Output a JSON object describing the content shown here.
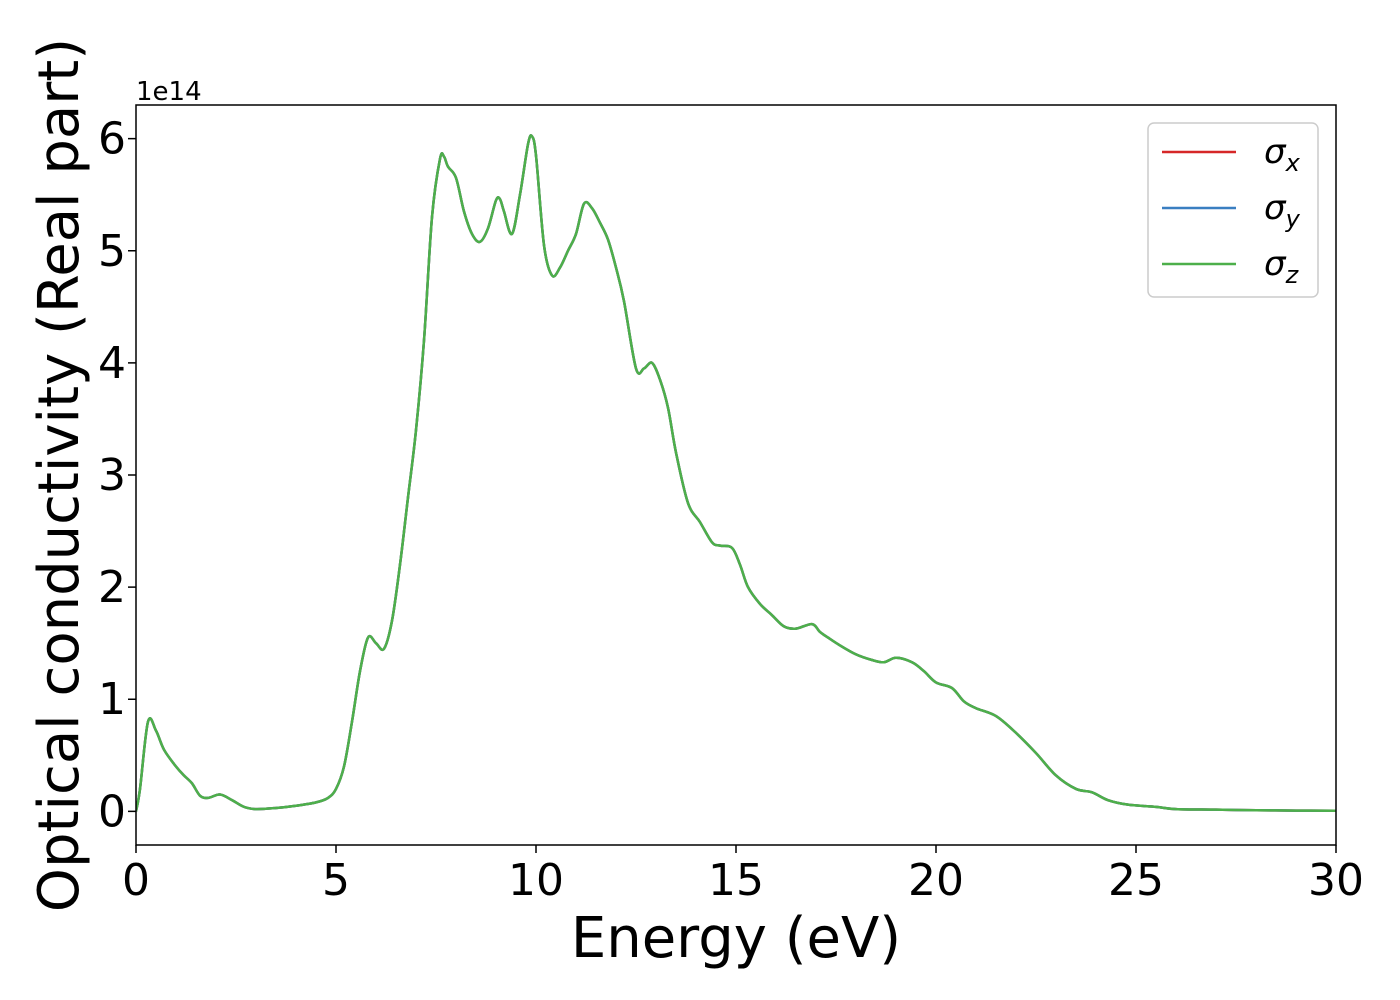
{
  "chart_data": {
    "type": "line",
    "xlabel": "Energy (eV)",
    "ylabel": "Optical conductivity (Real part)",
    "y_offset_label": "1e14",
    "xlim": [
      0,
      30
    ],
    "ylim": [
      -0.3,
      6.3
    ],
    "x_ticks": [
      0,
      5,
      10,
      15,
      20,
      25,
      30
    ],
    "y_ticks": [
      0,
      1,
      2,
      3,
      4,
      5,
      6
    ],
    "y_unit_scale": 100000000000000.0,
    "grid": false,
    "legend_position": "top-right",
    "series": [
      {
        "name": "σx",
        "symbol": "σ",
        "subscript": "x",
        "color": "#d62728"
      },
      {
        "name": "σy",
        "symbol": "σ",
        "subscript": "y",
        "color": "#3a7fc1"
      },
      {
        "name": "σz",
        "symbol": "σ",
        "subscript": "z",
        "color": "#4daf4a"
      }
    ],
    "x": [
      0,
      0.1,
      0.3,
      0.5,
      0.7,
      1.0,
      1.2,
      1.4,
      1.6,
      1.8,
      2.1,
      2.4,
      2.7,
      3.0,
      3.5,
      4.0,
      4.5,
      4.8,
      5.0,
      5.2,
      5.4,
      5.6,
      5.8,
      6.0,
      6.2,
      6.4,
      6.6,
      6.8,
      7.0,
      7.2,
      7.4,
      7.6,
      7.7,
      7.8,
      8.0,
      8.2,
      8.4,
      8.6,
      8.8,
      9.0,
      9.1,
      9.2,
      9.4,
      9.6,
      9.8,
      9.9,
      10.0,
      10.2,
      10.4,
      10.6,
      10.8,
      11.0,
      11.2,
      11.4,
      11.6,
      11.8,
      12.0,
      12.2,
      12.5,
      12.7,
      12.9,
      13.1,
      13.3,
      13.5,
      13.8,
      14.1,
      14.4,
      14.6,
      14.9,
      15.1,
      15.3,
      15.6,
      15.9,
      16.2,
      16.5,
      16.9,
      17.1,
      17.3,
      17.6,
      18.0,
      18.4,
      18.7,
      19.0,
      19.4,
      19.7,
      20.0,
      20.4,
      20.7,
      21.0,
      21.5,
      22.0,
      22.5,
      23.0,
      23.5,
      23.9,
      24.3,
      24.8,
      25.5,
      26.0,
      27.0,
      28.0,
      29.0,
      30.0
    ],
    "y": [
      0.0,
      0.2,
      0.8,
      0.72,
      0.55,
      0.4,
      0.32,
      0.25,
      0.14,
      0.12,
      0.15,
      0.1,
      0.04,
      0.02,
      0.03,
      0.05,
      0.08,
      0.12,
      0.2,
      0.4,
      0.8,
      1.25,
      1.55,
      1.5,
      1.45,
      1.7,
      2.2,
      2.8,
      3.4,
      4.2,
      5.3,
      5.82,
      5.84,
      5.75,
      5.65,
      5.35,
      5.15,
      5.08,
      5.2,
      5.45,
      5.46,
      5.35,
      5.15,
      5.5,
      5.95,
      6.02,
      5.85,
      5.05,
      4.78,
      4.85,
      5.0,
      5.15,
      5.42,
      5.38,
      5.25,
      5.1,
      4.85,
      4.55,
      3.95,
      3.95,
      4.0,
      3.85,
      3.6,
      3.2,
      2.75,
      2.58,
      2.4,
      2.37,
      2.35,
      2.2,
      2.0,
      1.85,
      1.75,
      1.65,
      1.63,
      1.67,
      1.6,
      1.55,
      1.48,
      1.4,
      1.35,
      1.33,
      1.37,
      1.33,
      1.25,
      1.15,
      1.1,
      0.98,
      0.92,
      0.85,
      0.7,
      0.52,
      0.32,
      0.2,
      0.17,
      0.1,
      0.06,
      0.04,
      0.02,
      0.015,
      0.01,
      0.007,
      0.005
    ]
  }
}
